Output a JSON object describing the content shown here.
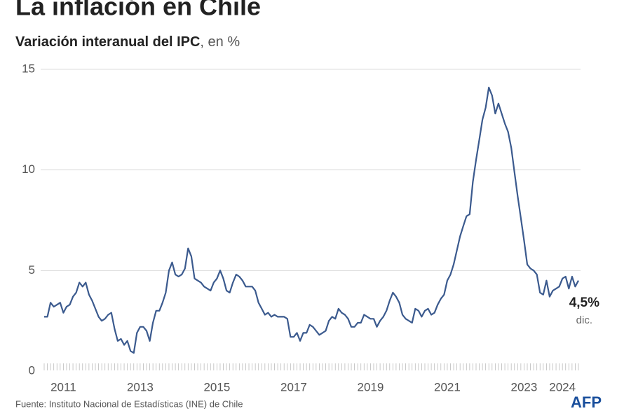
{
  "chart_data": {
    "type": "line",
    "title": "La inflación en Chile",
    "subtitle": "Variación interanual del IPC",
    "subtitle_unit": ", en %",
    "end_label": "4,5%",
    "end_label_note": "dic.",
    "source": "Fuente: Instituto Nacional de Estadísticas (INE) de Chile",
    "logo": "AFP",
    "categories": [
      null,
      null,
      null,
      null,
      null,
      null,
      "2011",
      null,
      null,
      null,
      null,
      null,
      null,
      null,
      null,
      null,
      null,
      null,
      null,
      null,
      null,
      null,
      null,
      null,
      null,
      null,
      null,
      null,
      null,
      null,
      "2013",
      null,
      null,
      null,
      null,
      null,
      null,
      null,
      null,
      null,
      null,
      null,
      null,
      null,
      null,
      null,
      null,
      null,
      null,
      null,
      null,
      null,
      null,
      null,
      "2015",
      null,
      null,
      null,
      null,
      null,
      null,
      null,
      null,
      null,
      null,
      null,
      null,
      null,
      null,
      null,
      null,
      null,
      null,
      null,
      null,
      null,
      null,
      null,
      "2017",
      null,
      null,
      null,
      null,
      null,
      null,
      null,
      null,
      null,
      null,
      null,
      null,
      null,
      null,
      null,
      null,
      null,
      null,
      null,
      null,
      null,
      null,
      null,
      "2019",
      null,
      null,
      null,
      null,
      null,
      null,
      null,
      null,
      null,
      null,
      null,
      null,
      null,
      null,
      null,
      null,
      null,
      null,
      null,
      null,
      null,
      null,
      null,
      "2021",
      null,
      null,
      null,
      null,
      null,
      null,
      null,
      null,
      null,
      null,
      null,
      null,
      null,
      null,
      null,
      null,
      null,
      null,
      null,
      null,
      null,
      null,
      null,
      "2023",
      null,
      null,
      null,
      null,
      null,
      null,
      null,
      null,
      null,
      null,
      null,
      "2024",
      null,
      null,
      null,
      null,
      null
    ],
    "series": [
      {
        "color": "#3b5a8e",
        "values": [
          2.7,
          2.7,
          3.4,
          3.2,
          3.3,
          3.4,
          2.9,
          3.2,
          3.3,
          3.7,
          3.9,
          4.4,
          4.2,
          4.4,
          3.8,
          3.5,
          3.1,
          2.7,
          2.5,
          2.6,
          2.8,
          2.9,
          2.1,
          1.5,
          1.6,
          1.3,
          1.5,
          1.0,
          0.9,
          1.9,
          2.2,
          2.2,
          2.0,
          1.5,
          2.4,
          3.0,
          3.0,
          3.4,
          3.9,
          5.0,
          5.4,
          4.8,
          4.7,
          4.8,
          5.1,
          6.1,
          5.7,
          4.6,
          4.5,
          4.4,
          4.2,
          4.1,
          4.0,
          4.4,
          4.6,
          5.0,
          4.6,
          4.0,
          3.9,
          4.4,
          4.8,
          4.7,
          4.5,
          4.2,
          4.2,
          4.2,
          4.0,
          3.4,
          3.1,
          2.8,
          2.9,
          2.7,
          2.8,
          2.7,
          2.7,
          2.7,
          2.6,
          1.7,
          1.7,
          1.9,
          1.5,
          1.9,
          1.9,
          2.3,
          2.2,
          2.0,
          1.8,
          1.9,
          2.0,
          2.5,
          2.7,
          2.6,
          3.1,
          2.9,
          2.8,
          2.6,
          2.2,
          2.2,
          2.4,
          2.4,
          2.8,
          2.7,
          2.6,
          2.6,
          2.2,
          2.5,
          2.7,
          3.0,
          3.5,
          3.9,
          3.7,
          3.4,
          2.8,
          2.6,
          2.5,
          2.4,
          3.1,
          3.0,
          2.7,
          3.0,
          3.1,
          2.8,
          2.9,
          3.3,
          3.6,
          3.8,
          4.5,
          4.8,
          5.3,
          6.0,
          6.7,
          7.2,
          7.7,
          7.8,
          9.4,
          10.5,
          11.5,
          12.5,
          13.1,
          14.1,
          13.7,
          12.8,
          13.3,
          12.8,
          12.3,
          11.9,
          11.1,
          9.9,
          8.7,
          7.6,
          6.5,
          5.3,
          5.1,
          5.0,
          4.8,
          3.9,
          3.8,
          4.5,
          3.7,
          4.0,
          4.1,
          4.2,
          4.6,
          4.7,
          4.1,
          4.7,
          4.2,
          4.5
        ]
      }
    ],
    "ylim": [
      0,
      15
    ],
    "yticks": [
      0,
      5,
      10,
      15
    ],
    "grid": true
  }
}
